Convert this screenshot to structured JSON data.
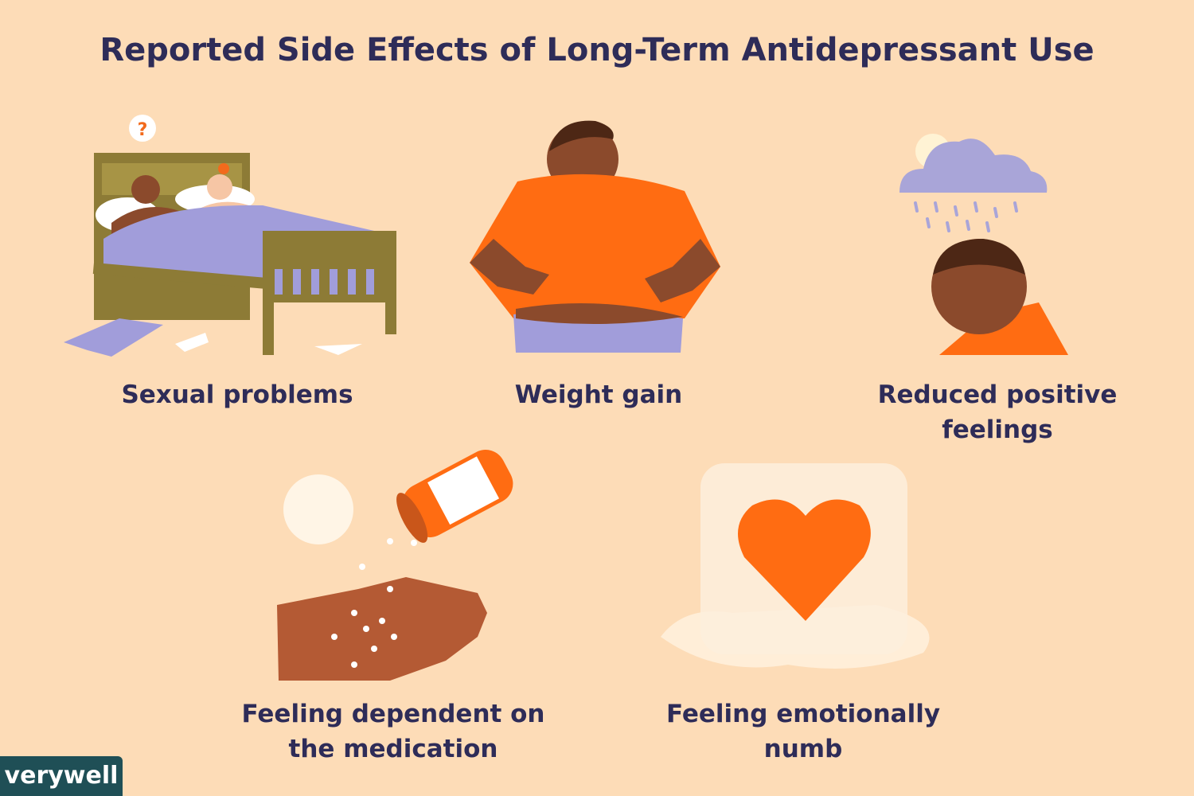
{
  "header": {
    "title": "Reported Side Effects of Long-Term Antidepressant Use"
  },
  "items": [
    {
      "label": "Sexual problems"
    },
    {
      "label": "Weight gain"
    },
    {
      "label": "Reduced positive feelings"
    },
    {
      "label": "Feeling dependent on the medication"
    },
    {
      "label": "Feeling emotionally numb"
    }
  ],
  "footer": {
    "logo": "verywell"
  }
}
